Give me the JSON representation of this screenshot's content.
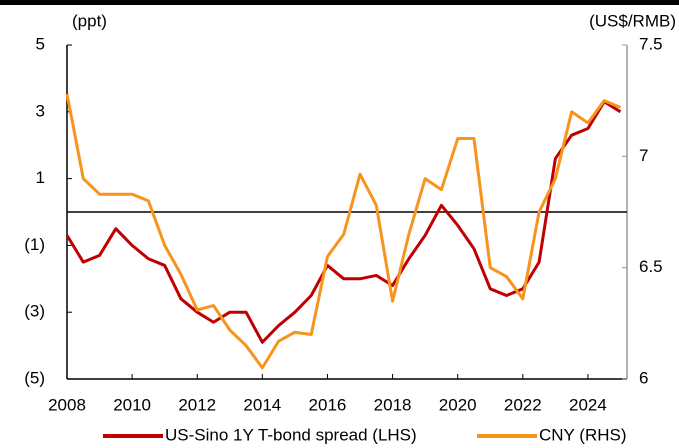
{
  "chart_data": {
    "type": "line",
    "y_label": "(ppt)",
    "y2_label": "(US$/RMB)",
    "x": [
      2008.0,
      2008.5,
      2009.0,
      2009.5,
      2010.0,
      2010.5,
      2011.0,
      2011.5,
      2012.0,
      2012.5,
      2013.0,
      2013.5,
      2014.0,
      2014.5,
      2015.0,
      2015.5,
      2016.0,
      2016.5,
      2017.0,
      2017.5,
      2018.0,
      2018.5,
      2019.0,
      2019.5,
      2020.0,
      2020.5,
      2021.0,
      2021.5,
      2022.0,
      2022.5,
      2023.0,
      2023.5,
      2024.0,
      2024.5,
      2025.0
    ],
    "series": [
      {
        "name": "US-Sino 1Y T-bond spread (LHS)",
        "color": "#c00000",
        "axis": "y",
        "values": [
          -0.7,
          -1.5,
          -1.3,
          -0.5,
          -1.0,
          -1.4,
          -1.6,
          -2.6,
          -3.0,
          -3.3,
          -3.0,
          -3.0,
          -3.9,
          -3.4,
          -3.0,
          -2.5,
          -1.6,
          -2.0,
          -2.0,
          -1.9,
          -2.2,
          -1.4,
          -0.7,
          0.2,
          -0.4,
          -1.1,
          -2.3,
          -2.5,
          -2.3,
          -1.5,
          1.6,
          2.3,
          2.5,
          3.3,
          3.0
        ]
      },
      {
        "name": "CNY (RHS)",
        "color": "#f7941d",
        "axis": "y2",
        "values": [
          7.28,
          6.9,
          6.83,
          6.83,
          6.83,
          6.8,
          6.6,
          6.47,
          6.31,
          6.33,
          6.22,
          6.15,
          6.05,
          6.17,
          6.21,
          6.2,
          6.55,
          6.65,
          6.92,
          6.78,
          6.35,
          6.65,
          6.9,
          6.85,
          7.08,
          7.08,
          6.5,
          6.46,
          6.36,
          6.75,
          6.9,
          7.2,
          7.15,
          7.25,
          7.22
        ]
      }
    ],
    "xlim": [
      2008,
      2025.2
    ],
    "xticks": [
      2008,
      2010,
      2012,
      2014,
      2016,
      2018,
      2020,
      2022,
      2024
    ],
    "ylim": [
      -5,
      5
    ],
    "yticks": [
      5,
      3,
      1,
      {
        "value": -1,
        "label": "(1)"
      },
      {
        "value": -3,
        "label": "(3)"
      },
      {
        "value": -5,
        "label": "(5)"
      }
    ],
    "y2lim": [
      6,
      7.5
    ],
    "y2ticks": [
      7.5,
      7,
      6.5,
      6
    ],
    "negative_label_color": "#e8141b",
    "zero_line": true,
    "legend": "bottom"
  }
}
